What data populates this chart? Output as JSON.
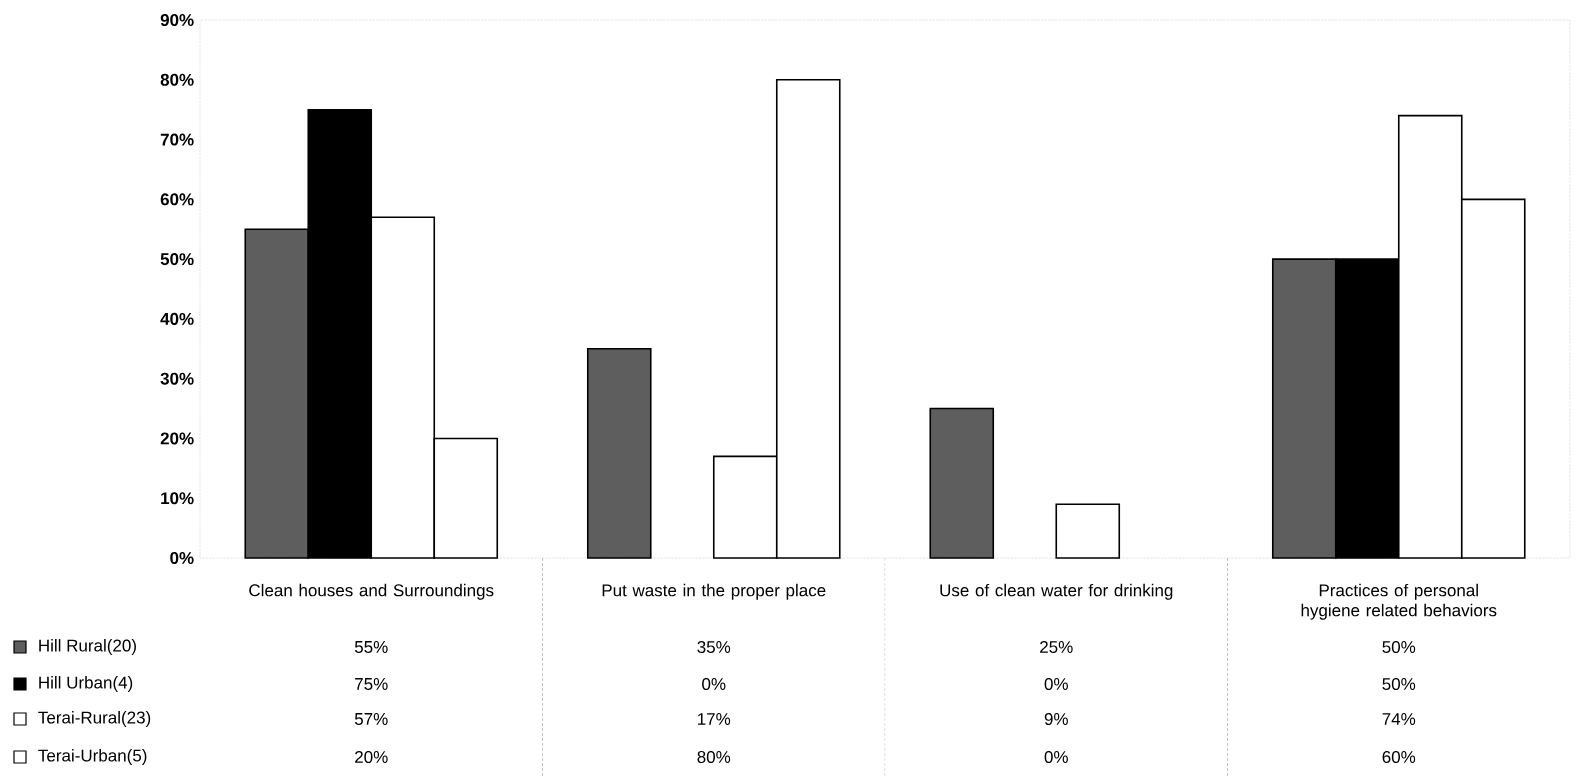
{
  "chart_data": {
    "type": "bar",
    "categories": [
      "Clean houses and Surroundings",
      "Put waste in the proper place",
      "Use of clean water for drinking",
      "Practices of personal hygiene related behaviors"
    ],
    "series": [
      {
        "name": "Hill Rural(20)",
        "color": "#5e5e5e",
        "values": [
          55,
          35,
          25,
          50
        ],
        "value_labels": [
          "55%",
          "35%",
          "25%",
          "50%"
        ]
      },
      {
        "name": "Hill Urban(4)",
        "color": "#000000",
        "values": [
          75,
          0,
          0,
          50
        ],
        "value_labels": [
          "75%",
          "0%",
          "0%",
          "50%"
        ]
      },
      {
        "name": "Terai-Rural(23)",
        "color": "#ffffff",
        "values": [
          57,
          17,
          9,
          74
        ],
        "value_labels": [
          "57%",
          "17%",
          "9%",
          "74%"
        ]
      },
      {
        "name": "Terai-Urban(5)",
        "color": "#ffffff",
        "values": [
          20,
          80,
          0,
          60
        ],
        "value_labels": [
          "20%",
          "80%",
          "0%",
          "60%"
        ]
      }
    ],
    "ylim": [
      0,
      90
    ],
    "yticks": [
      {
        "value": 0,
        "label": "0%"
      },
      {
        "value": 10,
        "label": "10%"
      },
      {
        "value": 20,
        "label": "20%"
      },
      {
        "value": 30,
        "label": "30%"
      },
      {
        "value": 40,
        "label": "40%"
      },
      {
        "value": 50,
        "label": "50%"
      },
      {
        "value": 60,
        "label": "60%"
      },
      {
        "value": 70,
        "label": "70%"
      },
      {
        "value": 80,
        "label": "80%"
      },
      {
        "value": 90,
        "label": "90%"
      }
    ],
    "legend": "bottom left"
  }
}
